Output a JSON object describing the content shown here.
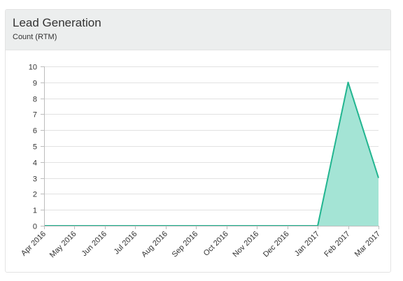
{
  "panel": {
    "title": "Lead Generation",
    "subtitle": "Count (RTM)"
  },
  "chart_data": {
    "type": "area",
    "title": "",
    "xlabel": "",
    "ylabel": "",
    "categories": [
      "Apr 2016",
      "May 2016",
      "Jun 2016",
      "Jul 2016",
      "Aug 2016",
      "Sep 2016",
      "Oct 2016",
      "Nov 2016",
      "Dec 2016",
      "Jan 2017",
      "Feb 2017",
      "Mar 2017"
    ],
    "series": [
      {
        "values": [
          0,
          0,
          0,
          0,
          0,
          0,
          0,
          0,
          0,
          0,
          9,
          3
        ],
        "line_color": "#22b590",
        "fill_color": "#a4e4d5"
      }
    ],
    "ylim": [
      0,
      10
    ],
    "yticks": [
      0,
      1,
      2,
      3,
      4,
      5,
      6,
      7,
      8,
      9,
      10
    ],
    "grid": true,
    "legend": "none"
  }
}
